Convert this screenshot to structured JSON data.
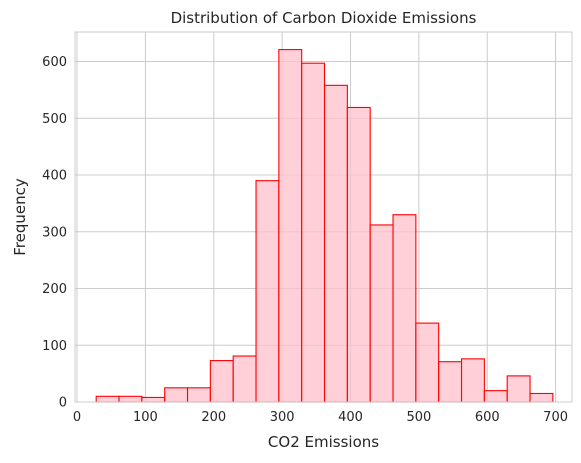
{
  "chart_data": {
    "type": "bar",
    "subtype": "histogram",
    "title": "Distribution of Carbon Dioxide Emissions",
    "xlabel": "CO2 Emissions",
    "ylabel": "Frequency",
    "xlim": [
      -3,
      724
    ],
    "ylim": [
      0,
      652
    ],
    "xticks": [
      0,
      100,
      200,
      300,
      400,
      500,
      600,
      700
    ],
    "yticks": [
      0,
      100,
      200,
      300,
      400,
      500,
      600
    ],
    "grid": true,
    "colors": {
      "fill": "#ffc0cb",
      "edge": "#ff0000",
      "grid": "#cccccc"
    },
    "bin_edges": [
      28,
      61.4,
      94.8,
      128.2,
      161.6,
      195,
      228.4,
      261.8,
      295.2,
      328.6,
      362,
      395.4,
      428.8,
      462.2,
      495.6,
      529,
      562.4,
      595.8,
      629.2,
      662.6,
      696
    ],
    "counts": [
      10,
      10,
      8,
      25,
      25,
      73,
      81,
      390,
      621,
      597,
      558,
      519,
      312,
      330,
      139,
      71,
      76,
      20,
      46,
      15
    ]
  }
}
